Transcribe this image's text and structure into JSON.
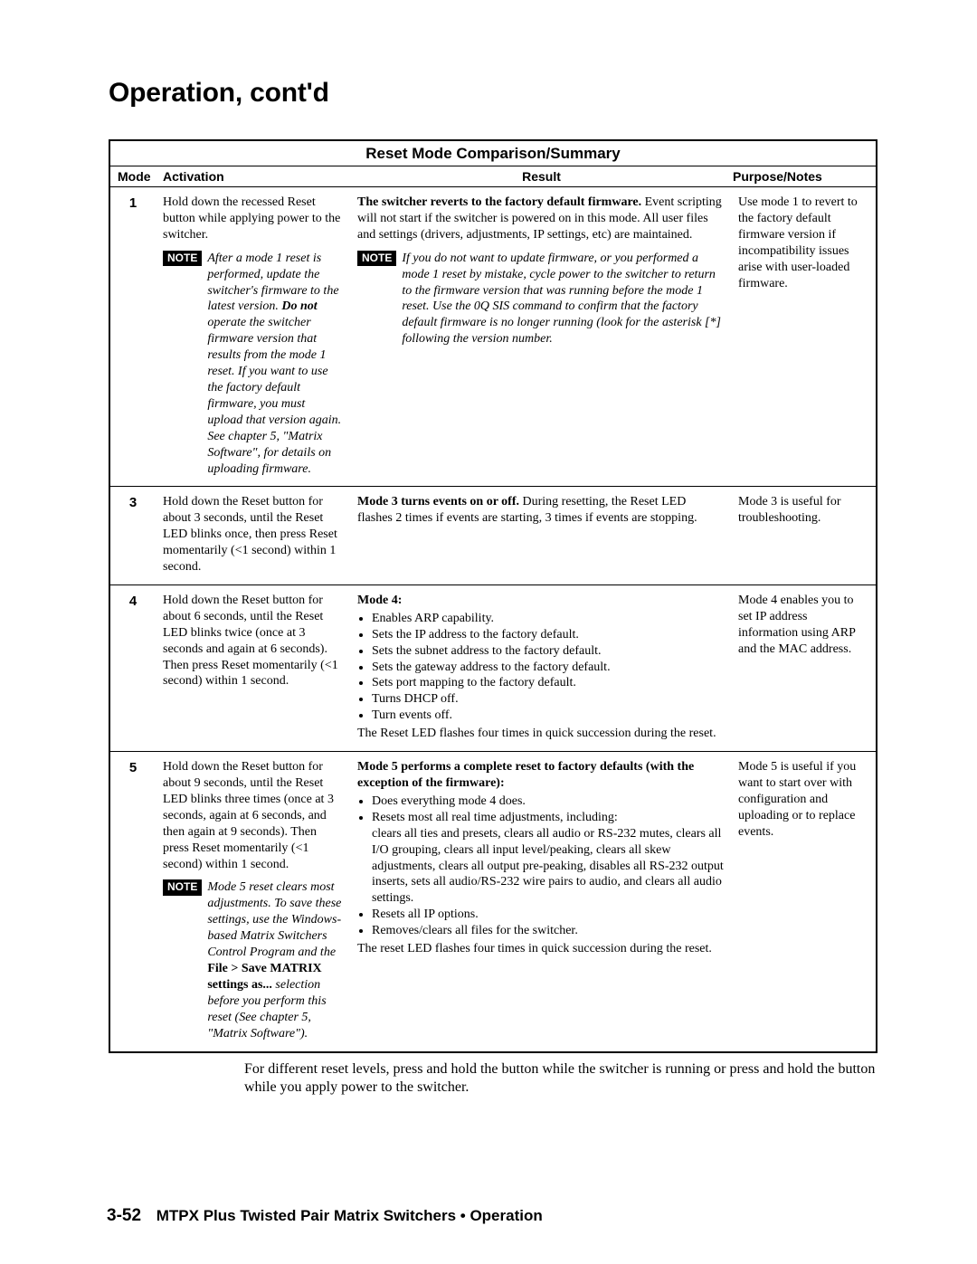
{
  "page_title": "Operation, cont'd",
  "table_title": "Reset Mode Comparison/Summary",
  "columns": {
    "mode": "Mode",
    "activation": "Activation",
    "result": "Result",
    "purpose": "Purpose/Notes"
  },
  "row1": {
    "mode": "1",
    "act_main": "Hold down the recessed Reset button while applying power to the switcher.",
    "act_note_lead": "After a mode 1 reset is performed, update the switcher's firmware to the latest version. ",
    "act_note_bold": "Do not",
    "act_note_tail": " operate the switcher firmware version that results from the mode 1 reset.  If you want to use the factory default firmware, you must upload that version again.  See chapter 5, \"Matrix Software\", for details on uploading firmware.",
    "res_lead_bold": "The switcher reverts to the factory default firmware.",
    "res_lead_rest": "  Event scripting will not start if the switcher is powered on in this mode.  All user files and settings (drivers, adjustments, IP settings, etc) are maintained.",
    "res_note": "If you do not want to update firmware, or you performed a mode 1 reset by mistake, cycle power to the switcher to return to the firmware version that was running before the mode 1 reset.  Use the 0Q SIS command to confirm that the factory default firmware is no longer running (look for the asterisk [*] following the version number.",
    "purp": "Use mode 1 to revert to the factory default firmware version if incompatibility issues arise with user-loaded firmware."
  },
  "row3": {
    "mode": "3",
    "act": "Hold down the Reset button for about 3 seconds, until the Reset LED blinks once, then press Reset momentarily (<1 second) within 1 second.",
    "res_bold": "Mode 3 turns events on or off.",
    "res_rest": "  During resetting, the Reset LED flashes 2 times if events are starting, 3 times if events are stopping.",
    "purp": "Mode 3 is useful for troubleshooting."
  },
  "row4": {
    "mode": "4",
    "act": "Hold down the Reset button for about 6 seconds, until the Reset LED blinks twice (once at 3 seconds and again at 6 seconds).  Then press Reset momentarily (<1 second) within 1 second.",
    "res_head": "Mode 4:",
    "res_items": [
      "Enables ARP capability.",
      "Sets the IP address to the factory default.",
      "Sets the subnet address to the factory default.",
      "Sets the gateway address to the factory default.",
      "Sets port mapping to the factory default.",
      "Turns DHCP off.",
      "Turn events off."
    ],
    "res_tail": "The Reset LED flashes four times in quick succession during the reset.",
    "purp": "Mode 4 enables you to set IP address information using ARP and the MAC address."
  },
  "row5": {
    "mode": "5",
    "act_main": "Hold down the Reset button for about 9 seconds, until the Reset LED blinks three times (once at 3 seconds, again at 6 seconds, and then again at 9 seconds).  Then press Reset momentarily (<1 second) within 1 second.",
    "act_note_p1": "Mode 5 reset clears most adjustments.  To save these settings, use the Windows-based Matrix Switchers Control Program and the ",
    "act_note_b1": "File > Save MATRIX settings as...",
    "act_note_p2": " selection before you perform this reset (See chapter 5, \"Matrix Software\").",
    "res_head": "Mode 5 performs a complete reset to factory defaults (with the exception of the firmware):",
    "res_item1": "Does everything mode 4 does.",
    "res_item2a": "Resets most all real time adjustments, including:",
    "res_item2b": "clears all ties and presets, clears all audio or RS-232 mutes, clears all I/O grouping, clears all input level/peaking, clears all skew adjustments, clears all output pre-peaking, disables all RS-232 output inserts, sets all audio/RS-232 wire pairs to audio, and clears all audio settings.",
    "res_item3": "Resets all IP options.",
    "res_item4": "Removes/clears all files for the switcher.",
    "res_tail": "The reset LED flashes four times in quick succession during the reset.",
    "purp": "Mode 5 is useful if you want to start over with configuration and uploading or to replace events."
  },
  "after_table_text": "For different reset levels, press and hold the button while the switcher is running or press and hold the button while you apply power to the switcher.",
  "footer": {
    "page_number": "3-52",
    "doc_title": "MTPX Plus Twisted Pair Matrix Switchers • Operation"
  },
  "labels": {
    "note": "NOTE"
  }
}
